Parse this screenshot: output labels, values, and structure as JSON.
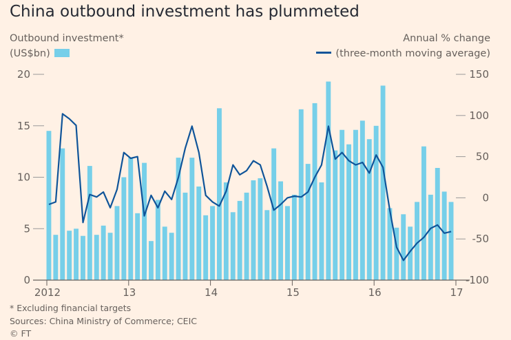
{
  "chart_data": {
    "type": "bar+line",
    "title": "China outbound investment has plummeted",
    "left_axis": {
      "label_line1": "Outbound investment*",
      "label_line2": "(US$bn)",
      "ylim": [
        0,
        20
      ],
      "ticks": [
        "0",
        "5",
        "10",
        "15",
        "20"
      ]
    },
    "right_axis": {
      "label_line1": "Annual % change",
      "label_line2": "(three-month moving average)",
      "ylim": [
        -100,
        150
      ],
      "ticks": [
        "-100",
        "-50",
        "0",
        "50",
        "100",
        "150"
      ]
    },
    "x_tick_labels": [
      "2012",
      "13",
      "14",
      "15",
      "16",
      "17"
    ],
    "series": [
      {
        "name": "Outbound investment",
        "kind": "bar",
        "axis": "left",
        "color": "#76cfe9",
        "values": [
          14.5,
          4.4,
          12.8,
          4.8,
          5.0,
          4.3,
          11.1,
          4.4,
          5.3,
          4.6,
          7.2,
          10.0,
          11.9,
          6.5,
          11.4,
          3.8,
          7.8,
          5.2,
          4.6,
          11.9,
          8.5,
          11.9,
          9.1,
          6.3,
          7.2,
          16.7,
          9.5,
          6.6,
          7.7,
          8.5,
          9.7,
          9.9,
          6.8,
          12.8,
          9.6,
          7.2,
          8.3,
          16.6,
          11.3,
          17.2,
          9.5,
          19.3,
          12.6,
          14.6,
          13.2,
          14.6,
          15.5,
          13.7,
          15.0,
          18.9,
          7.0,
          5.1,
          6.4,
          5.2,
          7.6,
          13.0,
          8.3,
          10.9,
          8.6,
          7.6
        ]
      },
      {
        "name": "three-month moving average",
        "kind": "line",
        "axis": "right",
        "color": "#0f5499",
        "values": [
          -8,
          -5,
          102,
          96,
          88,
          -30,
          4,
          1,
          7,
          -12,
          10,
          55,
          48,
          50,
          -22,
          3,
          -12,
          8,
          -2,
          25,
          60,
          87,
          55,
          3,
          -5,
          -10,
          8,
          40,
          28,
          33,
          45,
          40,
          14,
          -15,
          -8,
          0,
          2,
          1,
          7,
          25,
          40,
          87,
          47,
          55,
          45,
          40,
          43,
          30,
          52,
          37,
          -15,
          -60,
          -76,
          -65,
          -55,
          -48,
          -37,
          -33,
          -43,
          -41
        ]
      }
    ],
    "footnotes": [
      "* Excluding financial targets",
      "Sources: China Ministry of Commerce; CEIC",
      "© FT"
    ]
  }
}
